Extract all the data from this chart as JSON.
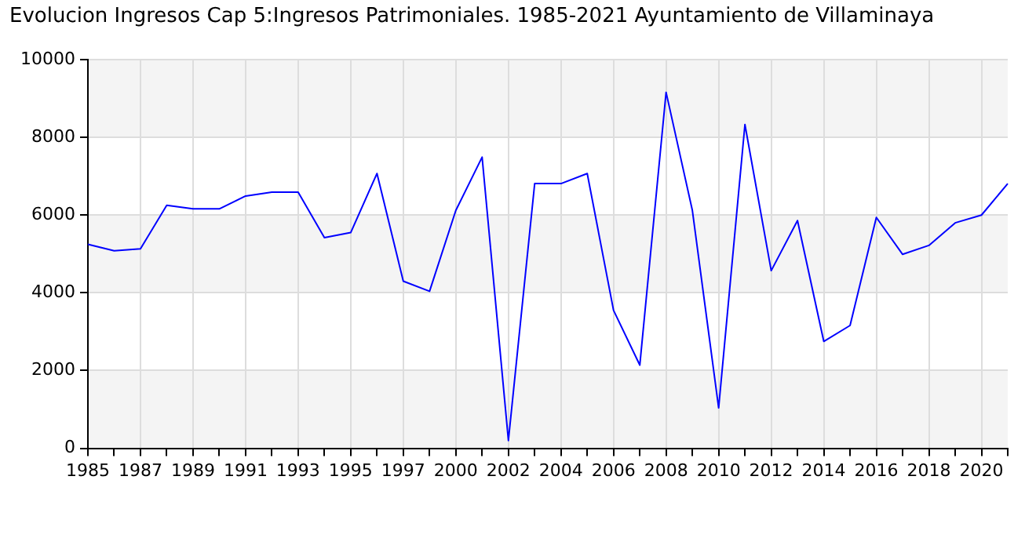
{
  "chart_data": {
    "type": "line",
    "title": "Evolucion Ingresos Cap 5:Ingresos Patrimoniales. 1985-2021 Ayuntamiento de Villaminaya",
    "categories": [
      "1985",
      null,
      "1987",
      null,
      "1989",
      null,
      "1991",
      null,
      "1993",
      null,
      "1995",
      null,
      "1997",
      null,
      "2000",
      null,
      "2002",
      null,
      "2004",
      null,
      "2006",
      null,
      "2008",
      null,
      "2010",
      null,
      "2012",
      null,
      "2014",
      null,
      "2016",
      null,
      "2018",
      null,
      "2020",
      null
    ],
    "series": [
      {
        "color": "#0000ff",
        "values": [
          5250,
          5080,
          5130,
          6250,
          6160,
          6160,
          6490,
          6590,
          6590,
          5420,
          5550,
          7070,
          4300,
          4040,
          6120,
          7490,
          200,
          6810,
          6810,
          7070,
          3550,
          2140,
          9160,
          6120,
          1040,
          8330,
          4570,
          5860,
          2750,
          3160,
          5940,
          4990,
          5220,
          5800,
          6000,
          6810
        ]
      }
    ],
    "ylim": [
      0,
      10000
    ],
    "yticks": [
      0,
      2000,
      4000,
      6000,
      8000,
      10000
    ],
    "grid": true,
    "legend": false,
    "marker": "none",
    "line_style": "solid"
  }
}
